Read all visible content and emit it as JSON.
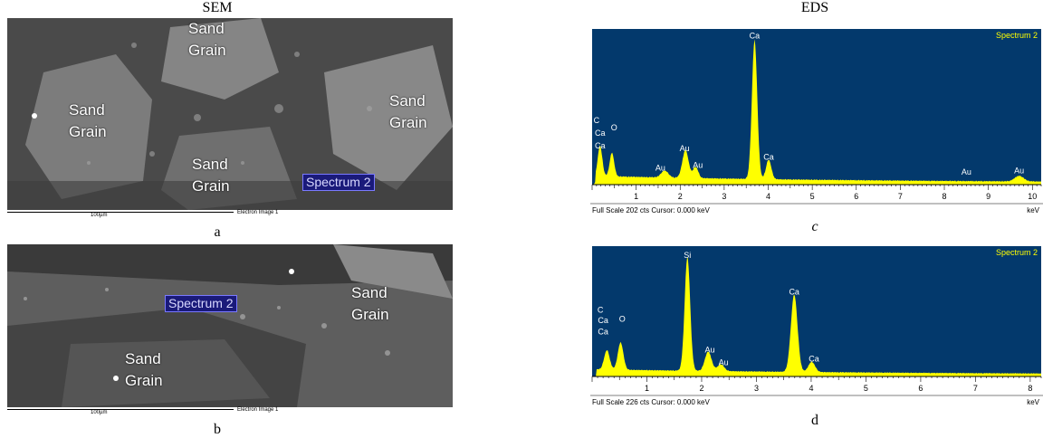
{
  "header": {
    "sem_title": "SEM",
    "eds_title": "EDS"
  },
  "sem_panels": [
    {
      "caption": "a",
      "grains": [
        {
          "line1": "Sand",
          "line2": "Grain"
        },
        {
          "line1": "Sand",
          "line2": "Grain"
        },
        {
          "line1": "Sand",
          "line2": "Grain"
        },
        {
          "line1": "Sand",
          "line2": "Grain"
        }
      ],
      "spectrum_label": "Spectrum 2",
      "scale_label": "100µm",
      "image_label": "Electron Image 1"
    },
    {
      "caption": "b",
      "grains": [
        {
          "line1": "Sand",
          "line2": "Grain"
        },
        {
          "line1": "Sand",
          "line2": "Grain"
        }
      ],
      "spectrum_label": "Spectrum 2",
      "scale_label": "100µm",
      "image_label": "Electron Image 1"
    }
  ],
  "chart_data": [
    {
      "type": "line",
      "caption": "c",
      "title": "Spectrum 2",
      "xlabel": "keV",
      "footer": "Full Scale 202 cts  Cursor: 0.000 keV",
      "xlim": [
        0,
        10.2
      ],
      "xticks": [
        "1",
        "2",
        "3",
        "4",
        "5",
        "6",
        "7",
        "8",
        "9",
        "10"
      ],
      "peaks": [
        {
          "x": 0.18,
          "y": 0.22,
          "w": 0.05
        },
        {
          "x": 0.45,
          "y": 0.17,
          "w": 0.05
        },
        {
          "x": 1.65,
          "y": 0.05,
          "w": 0.08
        },
        {
          "x": 2.12,
          "y": 0.2,
          "w": 0.07
        },
        {
          "x": 2.35,
          "y": 0.08,
          "w": 0.06
        },
        {
          "x": 3.69,
          "y": 1.0,
          "w": 0.06
        },
        {
          "x": 4.01,
          "y": 0.14,
          "w": 0.06
        },
        {
          "x": 9.7,
          "y": 0.04,
          "w": 0.1
        }
      ],
      "background": 0.05,
      "labels": [
        {
          "text": "C",
          "x": 0.1,
          "y": 0.44
        },
        {
          "text": "O",
          "x": 0.5,
          "y": 0.39
        },
        {
          "text": "Ca",
          "x": 0.18,
          "y": 0.35
        },
        {
          "text": "Ca",
          "x": 0.18,
          "y": 0.26
        },
        {
          "text": "Au",
          "x": 2.1,
          "y": 0.24
        },
        {
          "text": "Au",
          "x": 2.4,
          "y": 0.12
        },
        {
          "text": "Au",
          "x": 1.55,
          "y": 0.1
        },
        {
          "text": "Ca",
          "x": 3.69,
          "y": 1.05
        },
        {
          "text": "Ca",
          "x": 4.01,
          "y": 0.18
        },
        {
          "text": "Au",
          "x": 8.5,
          "y": 0.07
        },
        {
          "text": "Au",
          "x": 9.7,
          "y": 0.08
        }
      ]
    },
    {
      "type": "line",
      "caption": "d",
      "title": "Spectrum 2",
      "xlabel": "keV",
      "footer": "Full Scale 226 cts  Cursor: 0.000 keV",
      "xlim": [
        0,
        8.2
      ],
      "xticks": [
        "1",
        "2",
        "3",
        "4",
        "5",
        "6",
        "7",
        "8"
      ],
      "peaks": [
        {
          "x": 0.27,
          "y": 0.17,
          "w": 0.05
        },
        {
          "x": 0.52,
          "y": 0.24,
          "w": 0.05
        },
        {
          "x": 1.74,
          "y": 1.0,
          "w": 0.05
        },
        {
          "x": 2.12,
          "y": 0.17,
          "w": 0.06
        },
        {
          "x": 2.35,
          "y": 0.06,
          "w": 0.06
        },
        {
          "x": 3.69,
          "y": 0.68,
          "w": 0.06
        },
        {
          "x": 4.01,
          "y": 0.09,
          "w": 0.06
        }
      ],
      "background": 0.05,
      "labels": [
        {
          "text": "C",
          "x": 0.15,
          "y": 0.56
        },
        {
          "text": "O",
          "x": 0.55,
          "y": 0.48
        },
        {
          "text": "Ca",
          "x": 0.2,
          "y": 0.47
        },
        {
          "text": "Ca",
          "x": 0.2,
          "y": 0.37
        },
        {
          "text": "Si",
          "x": 1.74,
          "y": 1.04
        },
        {
          "text": "Au",
          "x": 2.15,
          "y": 0.21
        },
        {
          "text": "Au",
          "x": 2.4,
          "y": 0.1
        },
        {
          "text": "Ca",
          "x": 3.69,
          "y": 0.72
        },
        {
          "text": "Ca",
          "x": 4.05,
          "y": 0.13
        }
      ]
    }
  ],
  "colors": {
    "eds_bg": "#03396c",
    "spectrum": "#ffff00",
    "title": "#ffff00",
    "label": "#ffffff"
  }
}
